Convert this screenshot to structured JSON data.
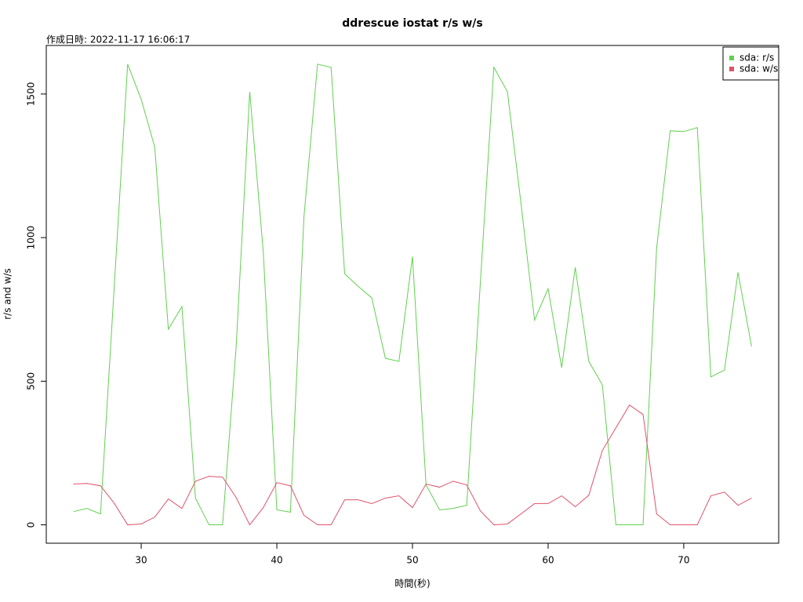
{
  "chart_data": {
    "type": "line",
    "title": "ddrescue iostat r/s w/s",
    "subtitle": "作成日時: 2022-11-17 16:06:17",
    "x_label": "時間(秒)",
    "y_label": "r/s and w/s",
    "x": [
      25,
      26,
      27,
      28,
      29,
      30,
      31,
      32,
      33,
      34,
      35,
      36,
      37,
      38,
      39,
      40,
      41,
      42,
      43,
      44,
      45,
      46,
      47,
      48,
      49,
      50,
      51,
      52,
      53,
      54,
      55,
      56,
      57,
      58,
      59,
      60,
      61,
      62,
      63,
      64,
      65,
      66,
      67,
      68,
      69,
      70,
      71,
      72,
      73,
      74,
      75
    ],
    "series": [
      {
        "name": "sda: r/s",
        "color": "#61d04f",
        "values": [
          46,
          57,
          38,
          820,
          1604,
          1481,
          1315,
          681,
          760,
          93,
          0,
          0,
          620,
          1508,
          950,
          52,
          44,
          1073,
          1604,
          1593,
          874,
          830,
          790,
          580,
          569,
          934,
          139,
          52,
          57,
          68,
          840,
          1593,
          1508,
          1119,
          713,
          822,
          547,
          896,
          569,
          487,
          0,
          0,
          0,
          964,
          1372,
          1369,
          1383,
          515,
          539,
          879,
          621
        ]
      },
      {
        "name": "sda: w/s",
        "color": "#df536b",
        "values": [
          142,
          144,
          136,
          76,
          0,
          3,
          27,
          90,
          57,
          152,
          169,
          166,
          95,
          0,
          60,
          147,
          136,
          33,
          0,
          0,
          87,
          87,
          74,
          93,
          101,
          60,
          142,
          131,
          152,
          139,
          49,
          0,
          3,
          38,
          74,
          74,
          101,
          63,
          103,
          259,
          338,
          417,
          384,
          38,
          0,
          0,
          0,
          101,
          114,
          68,
          93
        ]
      }
    ],
    "xlim": [
      23,
      77
    ],
    "ylim": [
      -64,
      1669
    ],
    "xticks": [
      30,
      40,
      50,
      60,
      70
    ],
    "yticks": [
      0,
      500,
      1000,
      1500
    ],
    "legend_position": "top-right"
  }
}
